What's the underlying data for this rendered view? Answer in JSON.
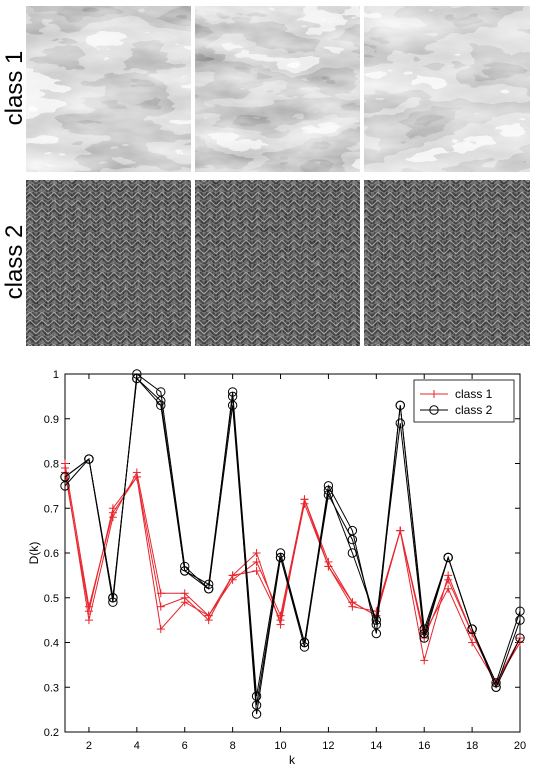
{
  "panel": {
    "row_labels": [
      "class 1",
      "class 2"
    ],
    "images_per_row": 3
  },
  "chart_data": {
    "type": "line",
    "xlabel": "k",
    "ylabel": "D(k)",
    "xlim": [
      1,
      20
    ],
    "ylim": [
      0.2,
      1.0
    ],
    "xticks": [
      2,
      4,
      6,
      8,
      10,
      12,
      14,
      16,
      18,
      20
    ],
    "yticks": [
      0.2,
      0.3,
      0.4,
      0.5,
      0.6,
      0.7,
      0.8,
      0.9,
      1.0
    ],
    "grid": false,
    "legend_position": "top-right",
    "x": [
      1,
      2,
      3,
      4,
      5,
      6,
      7,
      8,
      9,
      10,
      11,
      12,
      13,
      14,
      15,
      16,
      17,
      18,
      19,
      20
    ],
    "series": [
      {
        "name": "class 1",
        "color": "#e8242c",
        "marker": "plus",
        "values": [
          0.79,
          0.45,
          0.68,
          0.78,
          0.51,
          0.51,
          0.46,
          0.55,
          0.6,
          0.44,
          0.72,
          0.58,
          0.49,
          0.46,
          0.65,
          0.36,
          0.55,
          0.42,
          0.31,
          0.4
        ]
      },
      {
        "name": "",
        "color": "#e8242c",
        "marker": "plus",
        "values": [
          0.78,
          0.47,
          0.7,
          0.77,
          0.43,
          0.49,
          0.46,
          0.54,
          0.58,
          0.46,
          0.72,
          0.57,
          0.48,
          0.47,
          0.65,
          0.42,
          0.52,
          0.4,
          0.31,
          0.41
        ]
      },
      {
        "name": "",
        "color": "#e8242c",
        "marker": "plus",
        "values": [
          0.8,
          0.48,
          0.69,
          0.77,
          0.48,
          0.5,
          0.45,
          0.55,
          0.56,
          0.45,
          0.71,
          0.57,
          0.49,
          0.46,
          0.65,
          0.41,
          0.54,
          0.42,
          0.31,
          0.4
        ]
      },
      {
        "name": "class 2",
        "color": "#000000",
        "marker": "circle",
        "values": [
          0.77,
          0.81,
          0.49,
          1.0,
          0.96,
          0.57,
          0.52,
          0.96,
          0.28,
          0.6,
          0.4,
          0.75,
          0.65,
          0.42,
          0.93,
          0.43,
          0.59,
          0.43,
          0.31,
          0.47
        ]
      },
      {
        "name": "",
        "color": "#000000",
        "marker": "circle",
        "values": [
          0.75,
          0.81,
          0.5,
          0.99,
          0.94,
          0.56,
          0.53,
          0.95,
          0.24,
          0.59,
          0.39,
          0.74,
          0.6,
          0.45,
          0.89,
          0.41,
          0.59,
          0.43,
          0.3,
          0.45
        ]
      },
      {
        "name": "",
        "color": "#000000",
        "marker": "circle",
        "values": [
          0.77,
          0.81,
          0.5,
          0.99,
          0.93,
          0.56,
          0.52,
          0.93,
          0.26,
          0.59,
          0.4,
          0.73,
          0.63,
          0.44,
          0.93,
          0.42,
          0.59,
          0.43,
          0.3,
          0.41
        ]
      }
    ]
  }
}
